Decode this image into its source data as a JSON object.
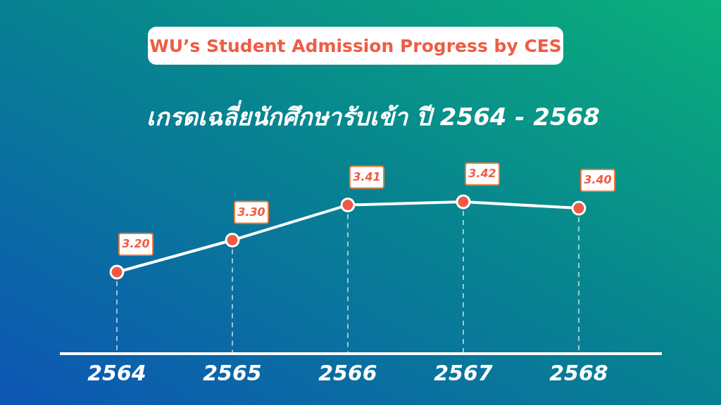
{
  "chart_data": {
    "type": "line",
    "title": "WU’s Student Admission Progress by CES",
    "subtitle": "เกรดเฉลี่ยนักศึกษารับเข้า ปี 2564 - 2568",
    "categories": [
      "2564",
      "2565",
      "2566",
      "2567",
      "2568"
    ],
    "series": [
      {
        "color": "#ffffff",
        "values": [
          3.2,
          3.3,
          3.41,
          3.42,
          3.4
        ],
        "value_labels": [
          "3.20",
          "3.30",
          "3.41",
          "3.42",
          "3.40"
        ]
      }
    ],
    "grid": "x",
    "marker": "circle",
    "line_style": "solid"
  }
}
